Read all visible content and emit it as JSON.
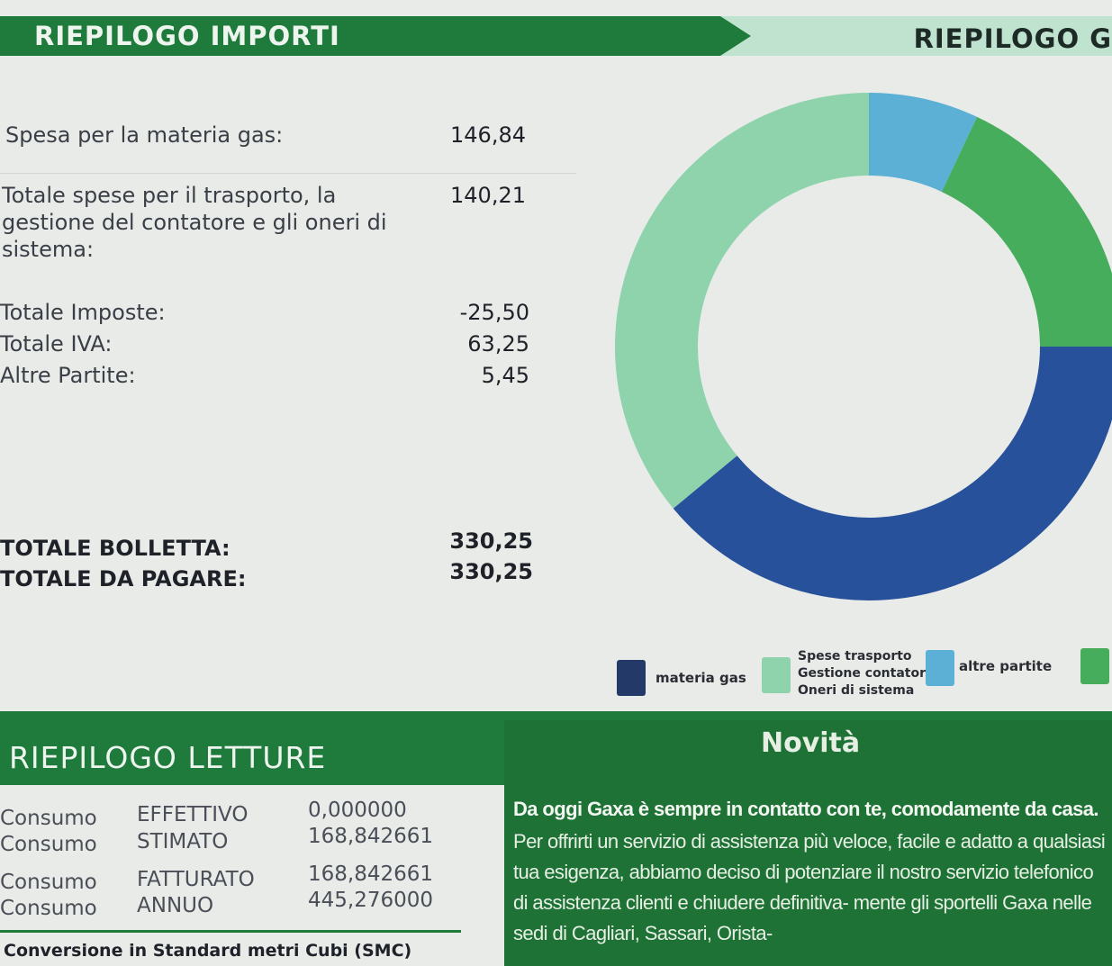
{
  "header": {
    "title": "RIEPILOGO IMPORTI",
    "right_title": "RIEPILOGO G"
  },
  "amounts": [
    {
      "label": "Spesa per la materia gas:",
      "value": "146,84"
    },
    {
      "label": "Totale spese per il trasporto, la gestione del contatore e gli oneri di sistema:",
      "value": "140,21"
    },
    {
      "label": "Totale Imposte:",
      "value": "-25,50"
    },
    {
      "label": "Totale IVA:",
      "value": "63,25"
    },
    {
      "label": "Altre Partite:",
      "value": "5,45"
    }
  ],
  "totals": [
    {
      "label": "TOTALE BOLLETTA:",
      "value": "330,25"
    },
    {
      "label": "TOTALE DA PAGARE:",
      "value": "330,25"
    }
  ],
  "chart_data": {
    "type": "pie",
    "donut": true,
    "series": [
      {
        "name": "altre partite",
        "share_percent": 7,
        "color": "#5cb0d6"
      },
      {
        "name": "",
        "share_percent": 18,
        "color": "#46ad5c"
      },
      {
        "name": "materia gas",
        "share_percent": 39,
        "color": "#27519a"
      },
      {
        "name": "Spese trasporto Gestione contatore Oneri di sistema",
        "share_percent": 36,
        "color": "#8fd3ad"
      }
    ]
  },
  "legend": {
    "gas": "materia gas",
    "trasporto": [
      "Spese trasporto",
      "Gestione contatore",
      "Oneri di sistema"
    ],
    "altre": "altre partite"
  },
  "letture": {
    "title": "RIEPILOGO LETTURE",
    "rows": [
      {
        "label": "Consumo",
        "type": "EFFETTIVO",
        "value": "0,000000"
      },
      {
        "label": "Consumo",
        "type": "STIMATO",
        "value": "168,842661"
      },
      {
        "label": "Consumo",
        "type": "FATTURATO",
        "value": "168,842661"
      },
      {
        "label": "Consumo",
        "type": "ANNUO",
        "value": "445,276000"
      }
    ],
    "conversion": "Conversione in Standard metri Cubi (SMC)"
  },
  "novita": {
    "title": "Novità",
    "lines": [
      "Da oggi Gaxa è sempre in contatto con te, comodamente da casa.",
      "Per offrirti un servizio di assistenza più veloce, facile e adatto a qualsiasi tua esigenza, abbiamo deciso di potenziare il nostro servizio telefonico di assistenza clienti e chiudere definitiva- mente gli sportelli Gaxa nelle sedi di Cagliari, Sassari, Orista-"
    ]
  }
}
